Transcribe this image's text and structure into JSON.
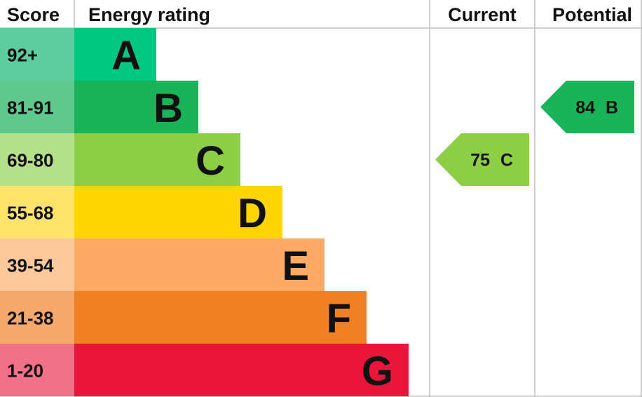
{
  "header": {
    "score": "Score",
    "rating": "Energy rating",
    "current": "Current",
    "potential": "Potential"
  },
  "bands": [
    {
      "score": "92+",
      "letter": "A",
      "color": "#00c781",
      "score_color": "#5fcca0"
    },
    {
      "score": "81-91",
      "letter": "B",
      "color": "#19b459",
      "score_color": "#5fc88c"
    },
    {
      "score": "69-80",
      "letter": "C",
      "color": "#8dce46",
      "score_color": "#b4e08b"
    },
    {
      "score": "55-68",
      "letter": "D",
      "color": "#ffd500",
      "score_color": "#ffe36b"
    },
    {
      "score": "39-54",
      "letter": "E",
      "color": "#fcaa65",
      "score_color": "#fdc89c"
    },
    {
      "score": "21-38",
      "letter": "F",
      "color": "#ef8023",
      "score_color": "#f4a86b"
    },
    {
      "score": "1-20",
      "letter": "G",
      "color": "#e9153b",
      "score_color": "#f17189"
    }
  ],
  "current": {
    "value": 75,
    "letter": "C"
  },
  "potential": {
    "value": 84,
    "letter": "B"
  }
}
